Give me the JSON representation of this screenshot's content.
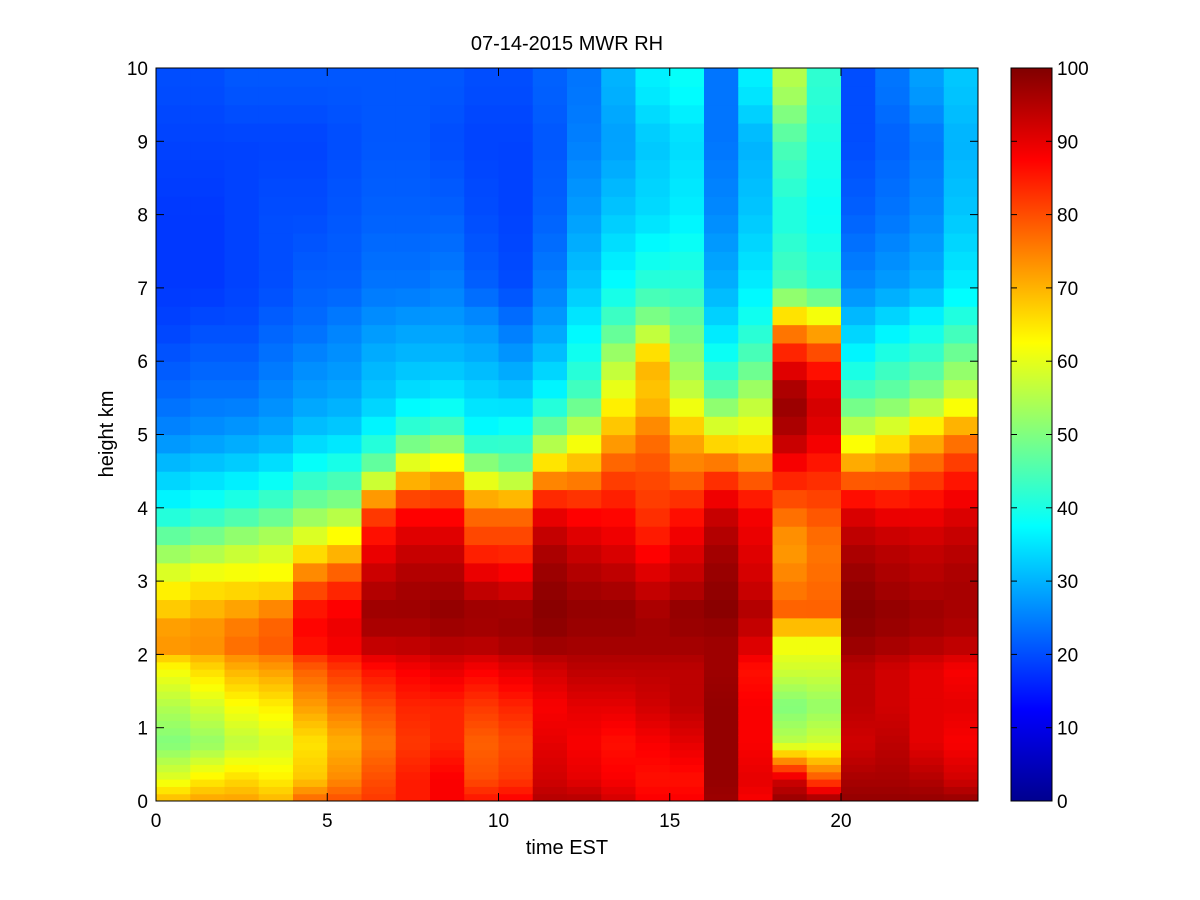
{
  "chart_data": {
    "type": "heatmap",
    "title": "07-14-2015 MWR RH",
    "xlabel": "time EST",
    "ylabel": "height km",
    "xlim": [
      0,
      24
    ],
    "ylim": [
      0,
      10
    ],
    "x_ticks": [
      "0",
      "5",
      "10",
      "15",
      "20"
    ],
    "y_ticks": [
      "0",
      "1",
      "2",
      "3",
      "4",
      "5",
      "6",
      "7",
      "8",
      "9",
      "10"
    ],
    "colormap": "jet",
    "clim": [
      0,
      100
    ],
    "colorbar_ticks": [
      "0",
      "10",
      "20",
      "30",
      "40",
      "50",
      "60",
      "70",
      "80",
      "90",
      "100"
    ],
    "colorbar_stops": [
      "#00008f",
      "#0000ff",
      "#0080ff",
      "#00ffff",
      "#80ff80",
      "#ffff00",
      "#ff8000",
      "#ff0000",
      "#800000"
    ],
    "x_start": 0,
    "x_step": 1,
    "heights_km": [
      0.0,
      0.1,
      0.2,
      0.3,
      0.4,
      0.5,
      0.6,
      0.7,
      0.8,
      0.9,
      1.0,
      1.1,
      1.2,
      1.3,
      1.4,
      1.5,
      1.6,
      1.7,
      1.8,
      1.9,
      2.0,
      2.25,
      2.5,
      2.75,
      3.0,
      3.25,
      3.5,
      3.75,
      4.0,
      4.25,
      4.5,
      4.75,
      5.0,
      5.25,
      5.5,
      5.75,
      6.0,
      6.25,
      6.5,
      6.75,
      7.0,
      7.25,
      7.5,
      7.75,
      8.0,
      8.25,
      8.5,
      8.75,
      9.0,
      9.25,
      9.5,
      9.75
    ],
    "profile_knots_km": [
      0.0,
      0.3,
      0.8,
      1.3,
      1.8,
      2.2,
      2.6,
      3.0,
      3.5,
      4.0,
      4.5,
      5.0,
      5.5,
      6.0,
      6.5,
      7.0,
      8.0,
      9.0,
      9.75
    ],
    "rh_profiles": [
      [
        70,
        60,
        50,
        55,
        62,
        75,
        68,
        62,
        50,
        38,
        32,
        26,
        23,
        21,
        19,
        18,
        18,
        19,
        20
      ],
      [
        72,
        64,
        52,
        58,
        66,
        75,
        70,
        64,
        52,
        40,
        33,
        27,
        24,
        22,
        20,
        18,
        18,
        19,
        20
      ],
      [
        72,
        66,
        56,
        62,
        70,
        78,
        72,
        64,
        55,
        42,
        34,
        28,
        24,
        22,
        20,
        19,
        19,
        19,
        21
      ],
      [
        70,
        64,
        58,
        64,
        72,
        80,
        75,
        64,
        57,
        45,
        36,
        29,
        26,
        24,
        22,
        20,
        20,
        19,
        21
      ],
      [
        78,
        68,
        65,
        72,
        78,
        88,
        86,
        78,
        62,
        50,
        40,
        32,
        28,
        26,
        23,
        22,
        20,
        19,
        21
      ],
      [
        80,
        74,
        70,
        76,
        82,
        90,
        88,
        82,
        66,
        52,
        42,
        33,
        29,
        27,
        25,
        22,
        21,
        20,
        21
      ],
      [
        82,
        80,
        76,
        80,
        86,
        95,
        97,
        94,
        88,
        80,
        50,
        38,
        32,
        30,
        27,
        24,
        22,
        21,
        21
      ],
      [
        85,
        85,
        82,
        84,
        88,
        95,
        97,
        96,
        92,
        86,
        65,
        44,
        35,
        31,
        28,
        24,
        22,
        21,
        21
      ],
      [
        88,
        88,
        84,
        84,
        90,
        96,
        98,
        96,
        92,
        86,
        68,
        46,
        36,
        31,
        28,
        25,
        22,
        20,
        21
      ],
      [
        86,
        80,
        78,
        82,
        88,
        96,
        97,
        92,
        82,
        76,
        55,
        38,
        34,
        30,
        27,
        22,
        20,
        19,
        20
      ],
      [
        88,
        82,
        80,
        84,
        90,
        97,
        97,
        90,
        82,
        76,
        50,
        40,
        33,
        28,
        24,
        20,
        19,
        19,
        20
      ],
      [
        95,
        92,
        90,
        88,
        92,
        98,
        99,
        98,
        95,
        88,
        70,
        50,
        38,
        32,
        28,
        25,
        22,
        21,
        22
      ],
      [
        95,
        90,
        88,
        90,
        94,
        97,
        98,
        96,
        92,
        86,
        72,
        58,
        45,
        40,
        36,
        32,
        28,
        25,
        24
      ],
      [
        92,
        88,
        86,
        90,
        94,
        97,
        98,
        95,
        90,
        86,
        80,
        70,
        62,
        55,
        45,
        38,
        32,
        28,
        30
      ],
      [
        88,
        86,
        88,
        92,
        94,
        97,
        96,
        92,
        86,
        82,
        80,
        76,
        68,
        70,
        52,
        42,
        34,
        32,
        36
      ],
      [
        88,
        86,
        90,
        94,
        94,
        97,
        98,
        94,
        90,
        85,
        76,
        70,
        58,
        52,
        48,
        42,
        36,
        34,
        38
      ],
      [
        97,
        98,
        98,
        98,
        97,
        97,
        99,
        98,
        96,
        92,
        80,
        62,
        48,
        40,
        34,
        30,
        26,
        24,
        24
      ],
      [
        88,
        90,
        88,
        88,
        86,
        92,
        95,
        92,
        90,
        88,
        76,
        62,
        55,
        46,
        40,
        36,
        32,
        30,
        36
      ],
      [
        98,
        92,
        56,
        50,
        58,
        62,
        78,
        75,
        72,
        78,
        86,
        95,
        98,
        88,
        72,
        45,
        40,
        45,
        55
      ],
      [
        98,
        80,
        58,
        52,
        58,
        62,
        78,
        77,
        76,
        80,
        84,
        90,
        92,
        84,
        68,
        42,
        38,
        40,
        42
      ],
      [
        98,
        96,
        92,
        94,
        94,
        98,
        99,
        98,
        95,
        90,
        75,
        58,
        46,
        38,
        32,
        26,
        22,
        20,
        20
      ],
      [
        98,
        96,
        94,
        92,
        92,
        97,
        98,
        96,
        94,
        88,
        76,
        62,
        48,
        42,
        35,
        28,
        24,
        22,
        24
      ],
      [
        98,
        95,
        90,
        90,
        90,
        96,
        97,
        95,
        93,
        88,
        80,
        68,
        52,
        44,
        38,
        30,
        26,
        24,
        28
      ],
      [
        98,
        92,
        88,
        90,
        88,
        95,
        96,
        96,
        94,
        90,
        84,
        74,
        58,
        50,
        42,
        36,
        32,
        30,
        32
      ]
    ]
  }
}
